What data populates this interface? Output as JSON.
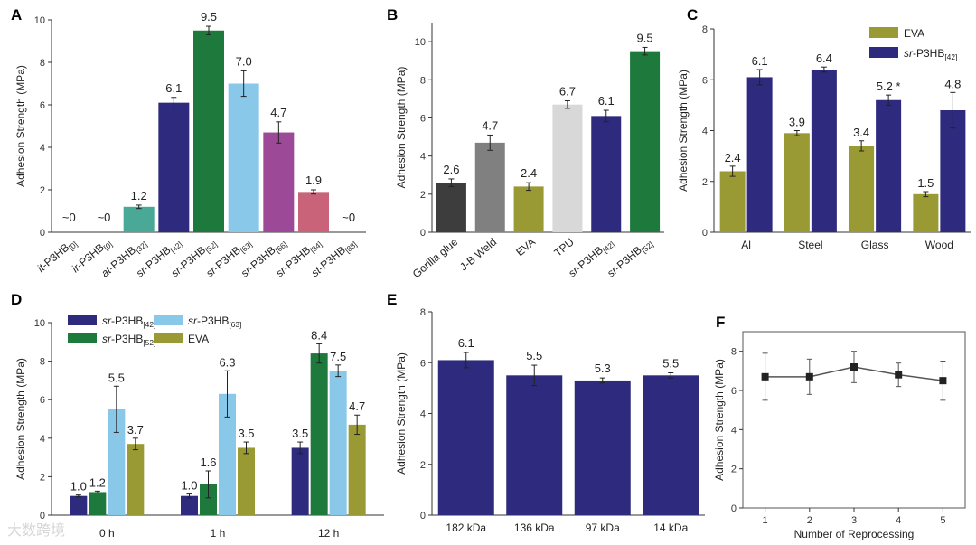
{
  "watermark": "大数跨境",
  "colors": {
    "navy": "#2e2a7e",
    "green": "#1e7a3c",
    "lightblue": "#89c8e8",
    "olive": "#9a9a35",
    "teal": "#4aa897",
    "purple": "#9c4a97",
    "pink": "#c8637a",
    "dark": "#3d3d3d",
    "gray": "#808080",
    "lightgray": "#d8d8d8"
  },
  "chart_data": [
    {
      "panel": "A",
      "type": "bar",
      "ylabel": "Adhesion Strength (MPa)",
      "ylim": [
        0,
        10
      ],
      "yticks": [
        0,
        2,
        4,
        6,
        8,
        10
      ],
      "categories": [
        "it-P3HB[0]",
        "ir-P3HB[0]",
        "at-P3HB[32]",
        "sr-P3HB[42]",
        "sr-P3HB[52]",
        "sr-P3HB[63]",
        "sr-P3HB[66]",
        "sr-P3HB[84]",
        "st-P3HB[88]"
      ],
      "values": [
        0,
        0,
        1.2,
        6.1,
        9.5,
        7.0,
        4.7,
        1.9,
        0
      ],
      "errors": [
        0,
        0,
        0.08,
        0.25,
        0.2,
        0.6,
        0.5,
        0.1,
        0
      ],
      "labels": [
        "~0",
        "~0",
        "1.2",
        "6.1",
        "9.5",
        "7.0",
        "4.7",
        "1.9",
        "~0"
      ],
      "colors": [
        "#4aa897",
        "#4aa897",
        "#4aa897",
        "#2e2a7e",
        "#1e7a3c",
        "#89c8e8",
        "#9c4a97",
        "#c8637a",
        "#c8637a"
      ]
    },
    {
      "panel": "B",
      "type": "bar",
      "ylabel": "Adhesion Strength (MPa)",
      "ylim": [
        0,
        11
      ],
      "yticks": [
        0,
        2,
        4,
        6,
        8,
        10
      ],
      "categories": [
        "Gorilla glue",
        "J-B Weld",
        "EVA",
        "TPU",
        "sr-P3HB[42]",
        "sr-P3HB[52]"
      ],
      "values": [
        2.6,
        4.7,
        2.4,
        6.7,
        6.1,
        9.5
      ],
      "errors": [
        0.2,
        0.4,
        0.2,
        0.2,
        0.3,
        0.2
      ],
      "labels": [
        "2.6",
        "4.7",
        "2.4",
        "6.7",
        "6.1",
        "9.5"
      ],
      "colors": [
        "#3d3d3d",
        "#808080",
        "#9a9a35",
        "#d8d8d8",
        "#2e2a7e",
        "#1e7a3c"
      ]
    },
    {
      "panel": "C",
      "type": "bar",
      "ylabel": "Adhesion Strength (MPa)",
      "ylim": [
        0,
        8
      ],
      "yticks": [
        0,
        2,
        4,
        6,
        8
      ],
      "categories": [
        "Al",
        "Steel",
        "Glass",
        "Wood"
      ],
      "legend": "top-right",
      "series": [
        {
          "name": "EVA",
          "color": "#9a9a35",
          "values": [
            2.4,
            3.9,
            3.4,
            1.5
          ],
          "errors": [
            0.2,
            0.1,
            0.2,
            0.1
          ],
          "labels": [
            "2.4",
            "3.9",
            "3.4",
            "1.5"
          ]
        },
        {
          "name": "sr-P3HB[42]",
          "color": "#2e2a7e",
          "values": [
            6.1,
            6.4,
            5.2,
            4.8
          ],
          "errors": [
            0.3,
            0.1,
            0.2,
            0.7
          ],
          "labels": [
            "6.1",
            "6.4",
            "5.2 *",
            "4.8"
          ]
        }
      ]
    },
    {
      "panel": "D",
      "type": "bar",
      "ylabel": "Adhesion Strength (MPa)",
      "ylim": [
        0,
        10
      ],
      "yticks": [
        0,
        2,
        4,
        6,
        8,
        10
      ],
      "categories": [
        "0 h",
        "1 h",
        "12 h"
      ],
      "legend": "top-left",
      "series": [
        {
          "name": "sr-P3HB[42]",
          "color": "#2e2a7e",
          "values": [
            1.0,
            1.0,
            3.5
          ],
          "errors": [
            0.05,
            0.1,
            0.3
          ],
          "labels": [
            "1.0",
            "1.0",
            "3.5"
          ]
        },
        {
          "name": "sr-P3HB[52]",
          "color": "#1e7a3c",
          "values": [
            1.2,
            1.6,
            8.4
          ],
          "errors": [
            0.05,
            0.7,
            0.5
          ],
          "labels": [
            "1.2",
            "1.6",
            "8.4"
          ]
        },
        {
          "name": "sr-P3HB[63]",
          "color": "#89c8e8",
          "values": [
            5.5,
            6.3,
            7.5
          ],
          "errors": [
            1.2,
            1.2,
            0.3
          ],
          "labels": [
            "5.5",
            "6.3",
            "7.5"
          ]
        },
        {
          "name": "EVA",
          "color": "#9a9a35",
          "values": [
            3.7,
            3.5,
            4.7
          ],
          "errors": [
            0.3,
            0.3,
            0.5
          ],
          "labels": [
            "3.7",
            "3.5",
            "4.7"
          ]
        }
      ]
    },
    {
      "panel": "E",
      "type": "bar",
      "ylabel": "Adhesion Strength (MPa)",
      "ylim": [
        0,
        8
      ],
      "yticks": [
        0,
        2,
        4,
        6,
        8
      ],
      "categories": [
        "182 kDa",
        "136 kDa",
        "97 kDa",
        "14 kDa"
      ],
      "values": [
        6.1,
        5.5,
        5.3,
        5.5
      ],
      "errors": [
        0.3,
        0.4,
        0.1,
        0.1
      ],
      "labels": [
        "6.1",
        "5.5",
        "5.3",
        "5.5"
      ],
      "colors": [
        "#2e2a7e",
        "#2e2a7e",
        "#2e2a7e",
        "#2e2a7e"
      ]
    },
    {
      "panel": "F",
      "type": "line",
      "ylabel": "Adhesion Strength (MPa)",
      "xlabel": "Number of Reprocessing",
      "ylim": [
        0,
        9
      ],
      "yticks": [
        0,
        2,
        4,
        6,
        8
      ],
      "x": [
        1,
        2,
        3,
        4,
        5
      ],
      "y": [
        6.7,
        6.7,
        7.2,
        6.8,
        6.5
      ],
      "errors": [
        1.2,
        0.9,
        0.8,
        0.6,
        1.0
      ]
    }
  ]
}
